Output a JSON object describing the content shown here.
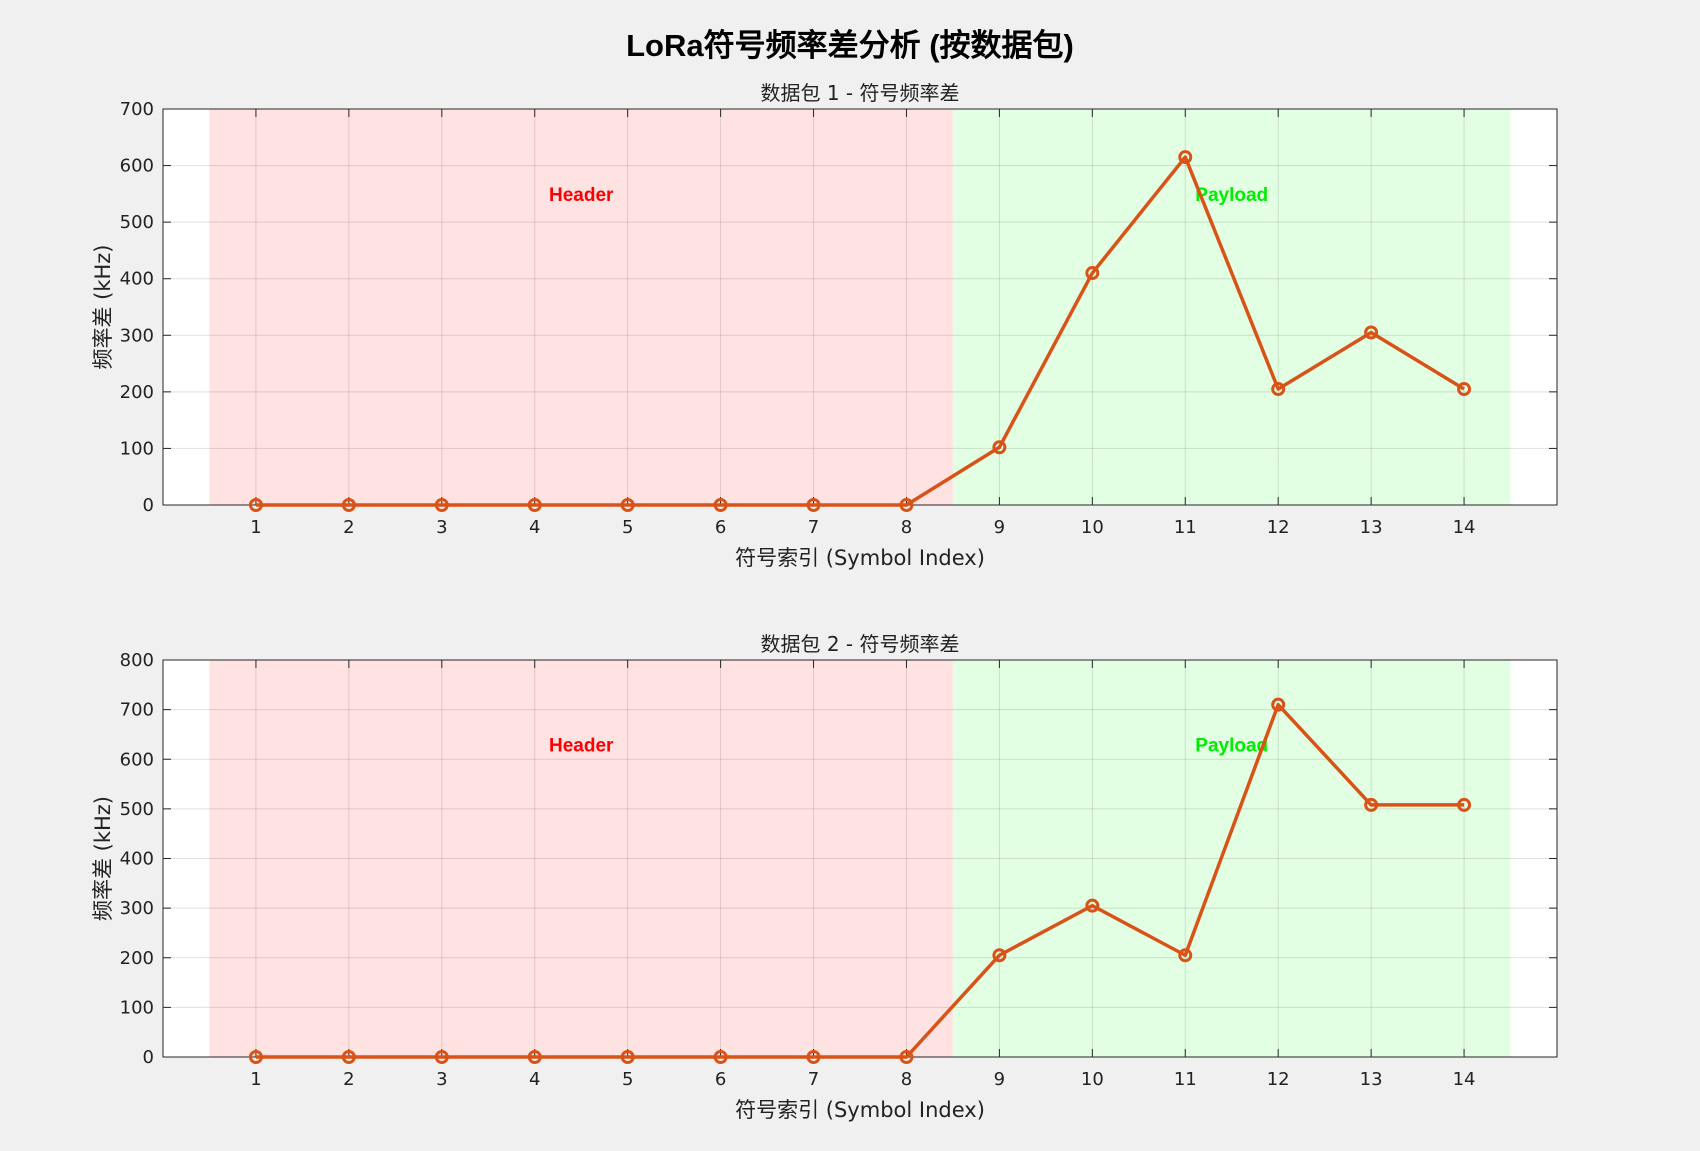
{
  "figure": {
    "title": "LoRa符号频率差分析 (按数据包)"
  },
  "chart_data": [
    {
      "type": "line",
      "title": "数据包 1 - 符号频率差",
      "xlabel": "符号索引 (Symbol Index)",
      "ylabel": "频率差 (kHz)",
      "x": [
        1,
        2,
        3,
        4,
        5,
        6,
        7,
        8,
        9,
        10,
        11,
        12,
        13,
        14
      ],
      "xlim": [
        0,
        15
      ],
      "ylim": [
        0,
        700
      ],
      "yticks": [
        0,
        100,
        200,
        300,
        400,
        500,
        600,
        700
      ],
      "grid": true,
      "series": [
        {
          "values": [
            0,
            0,
            0,
            0,
            0,
            0,
            0,
            0,
            102,
            410,
            615,
            205,
            305,
            205
          ],
          "color": "#d95319",
          "marker": "circle"
        }
      ],
      "regions": [
        {
          "label": "Header",
          "x_range": [
            0.5,
            8.5
          ],
          "fill": "#ffe3e3",
          "text_color": "#ff0000",
          "label_x": 4.5,
          "label_y": 550
        },
        {
          "label": "Payload",
          "x_range": [
            8.5,
            14.5
          ],
          "fill": "#e3ffe3",
          "text_color": "#00ee00",
          "label_x": 11.5,
          "label_y": 550
        }
      ]
    },
    {
      "type": "line",
      "title": "数据包 2 - 符号频率差",
      "xlabel": "符号索引 (Symbol Index)",
      "ylabel": "频率差 (kHz)",
      "x": [
        1,
        2,
        3,
        4,
        5,
        6,
        7,
        8,
        9,
        10,
        11,
        12,
        13,
        14
      ],
      "xlim": [
        0,
        15
      ],
      "ylim": [
        0,
        800
      ],
      "yticks": [
        0,
        100,
        200,
        300,
        400,
        500,
        600,
        700,
        800
      ],
      "grid": true,
      "series": [
        {
          "values": [
            0,
            0,
            0,
            0,
            0,
            0,
            0,
            0,
            205,
            305,
            205,
            710,
            508,
            508
          ],
          "color": "#d95319",
          "marker": "circle"
        }
      ],
      "regions": [
        {
          "label": "Header",
          "x_range": [
            0.5,
            8.5
          ],
          "fill": "#ffe3e3",
          "text_color": "#ff0000",
          "label_x": 4.5,
          "label_y": 630
        },
        {
          "label": "Payload",
          "x_range": [
            8.5,
            14.5
          ],
          "fill": "#e3ffe3",
          "text_color": "#00ee00",
          "label_x": 11.5,
          "label_y": 630
        }
      ]
    }
  ]
}
